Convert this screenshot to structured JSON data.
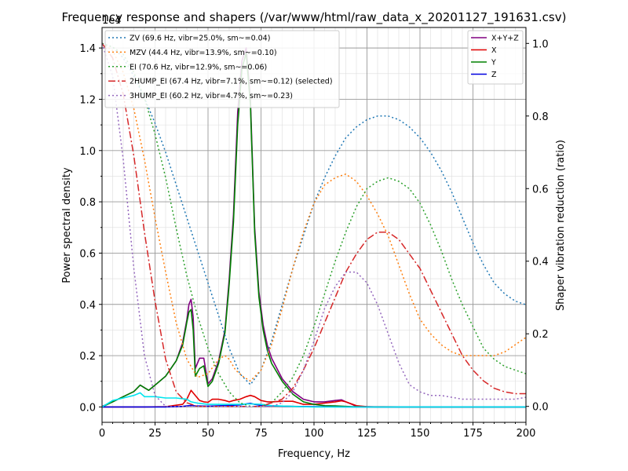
{
  "chart_data": {
    "type": "line",
    "title": "Frequency response and shapers (/var/www/html/raw_data_x_20201127_191631.csv)",
    "xlabel": "Frequency, Hz",
    "ylabel": "Power spectral density",
    "y2label": "Shaper vibration reduction (ratio)",
    "y_exponent_label": "1e4",
    "xlim": [
      0,
      200
    ],
    "ylim": [
      -0.06,
      1.48
    ],
    "y2lim": [
      -0.0439,
      1.0439
    ],
    "x_ticks": [
      0,
      25,
      50,
      75,
      100,
      125,
      150,
      175,
      200
    ],
    "y_ticks": [
      0.0,
      0.2,
      0.4,
      0.6,
      0.8,
      1.0,
      1.2,
      1.4
    ],
    "y2_ticks": [
      0.0,
      0.2,
      0.4,
      0.6,
      0.8,
      1.0
    ],
    "grid": true,
    "legend_left": "top-left",
    "legend_right": "top-right",
    "psd_series": [
      {
        "name": "X+Y+Z",
        "color": "#800080",
        "style": "solid",
        "x": [
          0,
          5,
          10,
          15,
          18,
          20,
          22,
          25,
          30,
          35,
          38,
          40,
          41,
          42,
          43,
          44,
          46,
          48,
          50,
          52,
          55,
          58,
          60,
          62,
          64,
          66,
          68,
          70,
          72,
          74,
          76,
          78,
          80,
          85,
          90,
          95,
          100,
          105,
          110,
          113,
          115,
          118,
          120,
          125,
          130,
          140,
          150,
          175,
          200
        ],
        "y": [
          0.002,
          0.02,
          0.04,
          0.06,
          0.085,
          0.075,
          0.065,
          0.085,
          0.12,
          0.18,
          0.25,
          0.34,
          0.4,
          0.42,
          0.35,
          0.15,
          0.19,
          0.19,
          0.09,
          0.11,
          0.18,
          0.3,
          0.5,
          0.75,
          1.15,
          1.35,
          1.4,
          1.2,
          0.7,
          0.45,
          0.32,
          0.24,
          0.19,
          0.11,
          0.06,
          0.03,
          0.02,
          0.02,
          0.025,
          0.028,
          0.02,
          0.01,
          0.002,
          0.001,
          0,
          0,
          0,
          0,
          0
        ]
      },
      {
        "name": "X",
        "color": "#e00000",
        "style": "solid",
        "x": [
          0,
          20,
          30,
          38,
          40,
          42,
          44,
          46,
          48,
          50,
          52,
          55,
          58,
          60,
          62,
          65,
          68,
          70,
          72,
          75,
          78,
          80,
          85,
          90,
          95,
          100,
          105,
          110,
          113,
          115,
          120,
          125,
          150,
          200
        ],
        "y": [
          0,
          0,
          0.001,
          0.01,
          0.03,
          0.065,
          0.045,
          0.025,
          0.02,
          0.018,
          0.03,
          0.03,
          0.025,
          0.02,
          0.025,
          0.03,
          0.04,
          0.045,
          0.04,
          0.025,
          0.02,
          0.02,
          0.022,
          0.022,
          0.01,
          0.01,
          0.015,
          0.02,
          0.024,
          0.02,
          0.005,
          0.001,
          0,
          0
        ]
      },
      {
        "name": "Y",
        "color": "#008000",
        "style": "solid",
        "x": [
          0,
          5,
          10,
          15,
          18,
          20,
          22,
          25,
          30,
          35,
          38,
          40,
          41,
          42,
          43,
          44,
          46,
          48,
          50,
          52,
          55,
          58,
          60,
          62,
          64,
          66,
          68,
          70,
          72,
          74,
          76,
          78,
          80,
          85,
          90,
          95,
          100,
          105,
          110,
          113,
          115,
          118,
          120,
          125,
          130,
          150,
          175,
          200
        ],
        "y": [
          0,
          0.02,
          0.04,
          0.06,
          0.085,
          0.075,
          0.065,
          0.085,
          0.12,
          0.18,
          0.24,
          0.33,
          0.37,
          0.38,
          0.3,
          0.12,
          0.15,
          0.16,
          0.08,
          0.1,
          0.17,
          0.29,
          0.48,
          0.72,
          1.1,
          1.32,
          1.38,
          1.18,
          0.68,
          0.43,
          0.3,
          0.22,
          0.17,
          0.1,
          0.05,
          0.02,
          0.01,
          0.005,
          0.004,
          0.003,
          0.002,
          0.001,
          0.001,
          0,
          0,
          0,
          0,
          0
        ]
      },
      {
        "name": "Z",
        "color": "#0000e0",
        "style": "solid",
        "x": [
          0,
          20,
          30,
          38,
          40,
          42,
          44,
          50,
          60,
          65,
          68,
          70,
          72,
          75,
          80,
          90,
          100,
          120,
          150,
          200
        ],
        "y": [
          0,
          0,
          0,
          0.002,
          0.004,
          0.006,
          0.004,
          0.003,
          0.006,
          0.008,
          0.012,
          0.014,
          0.01,
          0.006,
          0.004,
          0.002,
          0.001,
          0,
          0,
          0
        ]
      },
      {
        "name": "",
        "color": "#00e5ee",
        "style": "solid",
        "x": [
          0,
          5,
          10,
          15,
          18,
          20,
          25,
          30,
          35,
          40,
          42,
          45,
          50,
          55,
          60,
          65,
          70,
          75,
          80,
          90,
          100,
          120,
          150,
          200
        ],
        "y": [
          0,
          0.025,
          0.035,
          0.045,
          0.055,
          0.04,
          0.04,
          0.035,
          0.035,
          0.03,
          0.02,
          0.015,
          0.01,
          0.01,
          0.01,
          0.01,
          0.012,
          0.01,
          0.005,
          0.002,
          0,
          0,
          0,
          0
        ]
      }
    ],
    "shaper_series": [
      {
        "name": "ZV (69.6 Hz, vibr=25.0%, sm~=0.04)",
        "color": "#1f77b4",
        "style": "dotted",
        "x": [
          0,
          5,
          10,
          15,
          20,
          25,
          30,
          35,
          40,
          45,
          50,
          55,
          60,
          65,
          70,
          75,
          80,
          85,
          90,
          95,
          100,
          105,
          110,
          115,
          120,
          125,
          130,
          135,
          140,
          145,
          150,
          155,
          160,
          165,
          170,
          175,
          180,
          185,
          190,
          195,
          200
        ],
        "y": [
          1.0,
          0.99,
          0.96,
          0.91,
          0.85,
          0.78,
          0.7,
          0.61,
          0.52,
          0.43,
          0.34,
          0.25,
          0.16,
          0.09,
          0.06,
          0.1,
          0.18,
          0.28,
          0.38,
          0.47,
          0.56,
          0.63,
          0.69,
          0.74,
          0.77,
          0.79,
          0.8,
          0.8,
          0.79,
          0.77,
          0.74,
          0.7,
          0.65,
          0.59,
          0.52,
          0.45,
          0.39,
          0.34,
          0.31,
          0.29,
          0.28
        ]
      },
      {
        "name": "MZV (44.4 Hz, vibr=13.9%, sm~=0.10)",
        "color": "#ff7f0e",
        "style": "dotted",
        "x": [
          0,
          5,
          10,
          15,
          20,
          25,
          30,
          35,
          40,
          45,
          50,
          55,
          58,
          60,
          63,
          67,
          70,
          75,
          80,
          85,
          90,
          95,
          100,
          105,
          110,
          115,
          120,
          125,
          130,
          135,
          140,
          145,
          150,
          155,
          160,
          165,
          170,
          175,
          180,
          185,
          190,
          195,
          200
        ],
        "y": [
          1.0,
          0.98,
          0.92,
          0.82,
          0.68,
          0.52,
          0.37,
          0.23,
          0.13,
          0.08,
          0.09,
          0.13,
          0.14,
          0.13,
          0.1,
          0.08,
          0.07,
          0.1,
          0.17,
          0.27,
          0.38,
          0.48,
          0.56,
          0.61,
          0.63,
          0.64,
          0.62,
          0.58,
          0.53,
          0.47,
          0.39,
          0.31,
          0.24,
          0.2,
          0.17,
          0.15,
          0.14,
          0.14,
          0.14,
          0.14,
          0.15,
          0.17,
          0.19
        ]
      },
      {
        "name": "EI (70.6 Hz, vibr=12.9%, sm~=0.06)",
        "color": "#2ca02c",
        "style": "dotted",
        "x": [
          0,
          5,
          10,
          15,
          20,
          25,
          30,
          35,
          40,
          45,
          50,
          55,
          60,
          65,
          70,
          75,
          80,
          85,
          90,
          95,
          100,
          105,
          110,
          115,
          120,
          125,
          130,
          135,
          140,
          145,
          150,
          155,
          160,
          165,
          170,
          175,
          180,
          185,
          190,
          195,
          200
        ],
        "y": [
          1.0,
          0.99,
          0.97,
          0.92,
          0.85,
          0.75,
          0.63,
          0.49,
          0.36,
          0.25,
          0.16,
          0.09,
          0.04,
          0.01,
          0.0,
          0.0,
          0.01,
          0.04,
          0.08,
          0.14,
          0.22,
          0.31,
          0.4,
          0.48,
          0.55,
          0.6,
          0.62,
          0.63,
          0.62,
          0.6,
          0.56,
          0.5,
          0.43,
          0.35,
          0.28,
          0.22,
          0.16,
          0.13,
          0.11,
          0.1,
          0.09
        ]
      },
      {
        "name": "2HUMP_EI (67.4 Hz, vibr=7.1%, sm~=0.12) (selected)",
        "color": "#d62728",
        "style": "dashdot",
        "x": [
          0,
          5,
          10,
          15,
          20,
          25,
          30,
          35,
          40,
          45,
          50,
          55,
          60,
          65,
          70,
          75,
          80,
          85,
          90,
          95,
          100,
          105,
          110,
          115,
          120,
          125,
          130,
          135,
          140,
          145,
          150,
          155,
          160,
          165,
          170,
          175,
          180,
          185,
          190,
          195,
          200
        ],
        "y": [
          1.0,
          0.96,
          0.86,
          0.69,
          0.48,
          0.29,
          0.13,
          0.04,
          0.01,
          0.0,
          0.0,
          0.0,
          0.0,
          0.0,
          0.0,
          0.0,
          0.01,
          0.02,
          0.05,
          0.1,
          0.16,
          0.23,
          0.3,
          0.37,
          0.42,
          0.46,
          0.48,
          0.48,
          0.46,
          0.42,
          0.38,
          0.32,
          0.26,
          0.2,
          0.14,
          0.1,
          0.07,
          0.05,
          0.04,
          0.035,
          0.035
        ]
      },
      {
        "name": "3HUMP_EI (60.2 Hz, vibr=4.7%, sm~=0.23)",
        "color": "#9467bd",
        "style": "dotted",
        "x": [
          0,
          5,
          10,
          15,
          20,
          25,
          30,
          35,
          40,
          45,
          50,
          55,
          60,
          65,
          70,
          75,
          80,
          85,
          90,
          95,
          100,
          105,
          110,
          115,
          120,
          125,
          130,
          135,
          140,
          145,
          150,
          155,
          160,
          165,
          170,
          175,
          180,
          185,
          190,
          195,
          200
        ],
        "y": [
          1.0,
          0.91,
          0.68,
          0.38,
          0.14,
          0.03,
          0.0,
          0.0,
          0.0,
          0.0,
          0.0,
          0.0,
          0.0,
          0.0,
          0.0,
          0.0,
          0.0,
          0.01,
          0.04,
          0.1,
          0.18,
          0.27,
          0.33,
          0.37,
          0.37,
          0.34,
          0.28,
          0.2,
          0.12,
          0.06,
          0.04,
          0.03,
          0.03,
          0.025,
          0.02,
          0.02,
          0.02,
          0.02,
          0.02,
          0.02,
          0.025
        ]
      }
    ]
  }
}
